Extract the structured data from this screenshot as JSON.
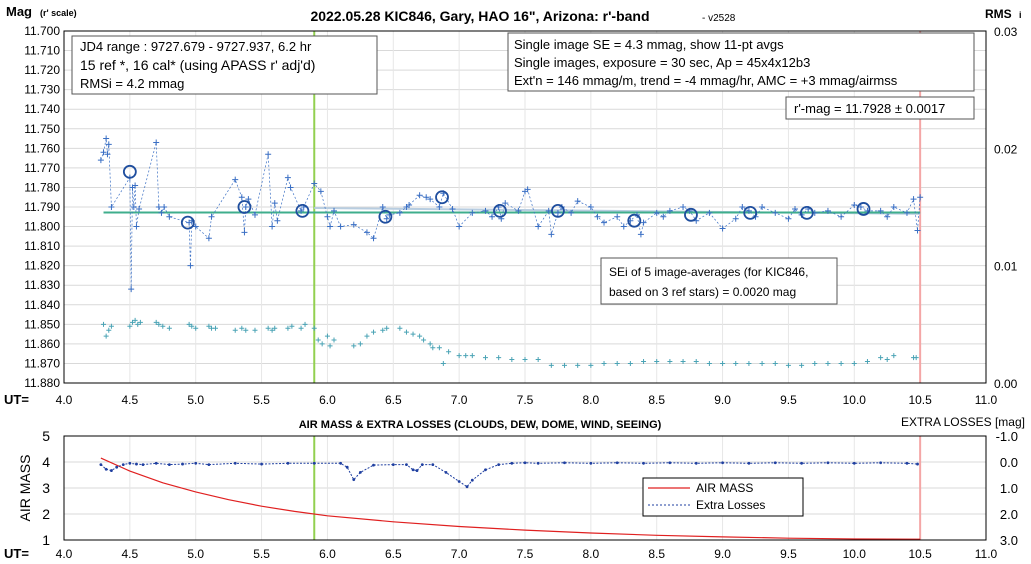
{
  "chart_data": [
    {
      "type": "scatter",
      "title": "2022.05.28 KIC846, Gary, HAO 16\", Arizona: r'-band",
      "version": "- v2528",
      "ylabel": "Mag",
      "ylabel_sub": "(r' scale)",
      "y2label": "RMS",
      "y2label_sub": "i",
      "xlabel": "UT=",
      "xlim": [
        4.0,
        11.0
      ],
      "ylim": [
        11.7,
        11.88
      ],
      "y_inverted": true,
      "y2lim": [
        0.0,
        0.03
      ],
      "x_ticks": [
        "4.0",
        "4.5",
        "5.0",
        "5.5",
        "6.0",
        "6.5",
        "7.0",
        "7.5",
        "8.0",
        "8.5",
        "9.0",
        "9.5",
        "10.0",
        "10.5",
        "11.0"
      ],
      "y_ticks": [
        "11.700",
        "11.710",
        "11.720",
        "11.730",
        "11.740",
        "11.750",
        "11.760",
        "11.770",
        "11.780",
        "11.790",
        "11.800",
        "11.810",
        "11.820",
        "11.830",
        "11.840",
        "11.850",
        "11.860",
        "11.870",
        "11.880"
      ],
      "y2_ticks": [
        "0.03",
        "0.02",
        "0.01",
        "0.00"
      ],
      "grid": true,
      "annotations": {
        "box1": [
          "JD4 range : 9727.679 - 9727.937,  6.2  hr",
          "15 ref *, 16 cal* (using APASS r' adj'd)",
          "RMSi = 4.2 mmag"
        ],
        "box2": [
          "Single image SE = 4.3 mmag, show  11-pt avgs",
          "Single images, exposure = 30 sec, Ap = 45x4x12b3",
          "Ext'n = 146 mmag/m, trend = -4  mmag/hr, AMC = +3 mmag/airmss"
        ],
        "box3": "r'-mag = 11.7928 ± 0.0017",
        "box4": [
          "SEi of 5 image-averages (for KIC846,",
          "based on 3 ref stars) = 0.0020 mag"
        ]
      },
      "vlines": [
        {
          "x": 5.9,
          "color": "#92d050"
        },
        {
          "x": 10.5,
          "color": "#f4a6a6"
        }
      ],
      "hline": {
        "y": 11.7928,
        "color": "#3fae8c"
      },
      "trend_line": {
        "x": [
          5.9,
          10.5
        ],
        "y": [
          11.7905,
          11.7935
        ]
      },
      "series": [
        {
          "role": "single-images",
          "color": "#3a6fc4",
          "x": [
            4.28,
            4.3,
            4.32,
            4.33,
            4.34,
            4.36,
            4.5,
            4.51,
            4.52,
            4.53,
            4.54,
            4.55,
            4.57,
            4.7,
            4.72,
            4.74,
            4.76,
            4.8,
            4.95,
            4.96,
            4.97,
            5.0,
            5.1,
            5.12,
            5.3,
            5.35,
            5.37,
            5.38,
            5.4,
            5.45,
            5.55,
            5.58,
            5.6,
            5.62,
            5.7,
            5.72,
            5.8,
            5.82,
            5.9,
            5.95,
            6.0,
            6.02,
            6.05,
            6.1,
            6.2,
            6.3,
            6.35,
            6.42,
            6.45,
            6.47,
            6.55,
            6.6,
            6.62,
            6.7,
            6.75,
            6.78,
            6.85,
            6.88,
            6.95,
            7.0,
            7.1,
            7.2,
            7.25,
            7.3,
            7.32,
            7.35,
            7.45,
            7.5,
            7.52,
            7.6,
            7.68,
            7.7,
            7.75,
            7.78,
            7.85,
            7.9,
            8.0,
            8.05,
            8.1,
            8.2,
            8.25,
            8.3,
            8.35,
            8.38,
            8.4,
            8.5,
            8.55,
            8.6,
            8.7,
            8.75,
            8.8,
            8.9,
            9.0,
            9.1,
            9.15,
            9.2,
            9.25,
            9.3,
            9.4,
            9.5,
            9.55,
            9.6,
            9.65,
            9.7,
            9.8,
            9.9,
            10.0,
            10.05,
            10.1,
            10.2,
            10.25,
            10.3,
            10.4,
            10.45,
            10.48,
            10.5
          ],
          "y": [
            11.766,
            11.762,
            11.755,
            11.763,
            11.758,
            11.79,
            11.775,
            11.832,
            11.78,
            11.79,
            11.779,
            11.8,
            11.791,
            11.757,
            11.79,
            11.793,
            11.79,
            11.795,
            11.798,
            11.82,
            11.797,
            11.8,
            11.806,
            11.795,
            11.776,
            11.785,
            11.803,
            11.79,
            11.786,
            11.794,
            11.763,
            11.8,
            11.788,
            11.797,
            11.775,
            11.78,
            11.792,
            11.79,
            11.778,
            11.782,
            11.795,
            11.8,
            11.792,
            11.8,
            11.799,
            11.803,
            11.806,
            11.79,
            11.796,
            11.794,
            11.793,
            11.79,
            11.789,
            11.784,
            11.785,
            11.786,
            11.79,
            11.783,
            11.791,
            11.8,
            11.793,
            11.792,
            11.795,
            11.79,
            11.796,
            11.788,
            11.792,
            11.782,
            11.781,
            11.8,
            11.792,
            11.804,
            11.793,
            11.79,
            11.793,
            11.787,
            11.79,
            11.795,
            11.798,
            11.795,
            11.8,
            11.797,
            11.794,
            11.804,
            11.798,
            11.793,
            11.795,
            11.792,
            11.79,
            11.792,
            11.797,
            11.793,
            11.801,
            11.796,
            11.79,
            11.792,
            11.795,
            11.79,
            11.793,
            11.796,
            11.791,
            11.794,
            11.791,
            11.793,
            11.792,
            11.795,
            11.789,
            11.79,
            11.792,
            11.792,
            11.795,
            11.79,
            11.793,
            11.786,
            11.802,
            11.785
          ]
        },
        {
          "role": "11-pt-averages",
          "color": "#1f4e9e",
          "x": [
            4.5,
            4.94,
            5.37,
            5.81,
            6.44,
            6.87,
            7.31,
            7.75,
            8.33,
            8.76,
            9.21,
            9.64,
            10.07
          ],
          "y": [
            11.772,
            11.798,
            11.79,
            11.792,
            11.795,
            11.785,
            11.792,
            11.792,
            11.797,
            11.794,
            11.793,
            11.793,
            11.791
          ]
        },
        {
          "role": "rms",
          "color": "#4aa3b5",
          "x": [
            4.3,
            4.32,
            4.34,
            4.36,
            4.5,
            4.52,
            4.54,
            4.56,
            4.58,
            4.7,
            4.72,
            4.75,
            4.8,
            4.95,
            4.97,
            5.0,
            5.1,
            5.12,
            5.15,
            5.3,
            5.35,
            5.38,
            5.45,
            5.55,
            5.58,
            5.6,
            5.7,
            5.73,
            5.8,
            5.83,
            5.9,
            5.93,
            5.96,
            6.0,
            6.02,
            6.05,
            6.2,
            6.25,
            6.3,
            6.35,
            6.42,
            6.45,
            6.55,
            6.6,
            6.65,
            6.7,
            6.73,
            6.78,
            6.8,
            6.85,
            6.88,
            6.92,
            7.0,
            7.05,
            7.1,
            7.2,
            7.3,
            7.4,
            7.5,
            7.6,
            7.7,
            7.8,
            7.9,
            8.0,
            8.1,
            8.2,
            8.3,
            8.4,
            8.5,
            8.6,
            8.7,
            8.8,
            8.9,
            9.0,
            9.1,
            9.2,
            9.3,
            9.4,
            9.5,
            9.6,
            9.7,
            9.8,
            9.9,
            10.0,
            10.1,
            10.2,
            10.25,
            10.3,
            10.45,
            10.47
          ],
          "y": [
            11.85,
            11.856,
            11.853,
            11.851,
            11.851,
            11.849,
            11.848,
            11.85,
            11.849,
            11.849,
            11.85,
            11.851,
            11.852,
            11.85,
            11.851,
            11.852,
            11.851,
            11.852,
            11.852,
            11.853,
            11.852,
            11.853,
            11.853,
            11.852,
            11.853,
            11.852,
            11.852,
            11.851,
            11.852,
            11.85,
            11.852,
            11.858,
            11.86,
            11.856,
            11.861,
            11.858,
            11.861,
            11.86,
            11.856,
            11.854,
            11.853,
            11.852,
            11.852,
            11.854,
            11.855,
            11.856,
            11.858,
            11.86,
            11.862,
            11.862,
            11.87,
            11.864,
            11.866,
            11.866,
            11.866,
            11.867,
            11.867,
            11.868,
            11.868,
            11.868,
            11.871,
            11.871,
            11.871,
            11.871,
            11.87,
            11.87,
            11.87,
            11.869,
            11.869,
            11.869,
            11.869,
            11.869,
            11.87,
            11.87,
            11.87,
            11.87,
            11.87,
            11.87,
            11.871,
            11.871,
            11.87,
            11.87,
            11.87,
            11.87,
            11.869,
            11.867,
            11.868,
            11.866,
            11.867,
            11.867
          ]
        }
      ]
    },
    {
      "type": "line",
      "title": "AIR MASS & EXTRA LOSSES (CLOUDS, DEW, DOME, WIND, SEEING)",
      "ylabel": "AIR MASS",
      "y2label": "EXTRA LOSSES [mag]",
      "xlabel": "UT=",
      "xlim": [
        4.0,
        11.0
      ],
      "ylim": [
        1,
        5
      ],
      "y2lim": [
        -1.0,
        3.0
      ],
      "y2_inverted": true,
      "x_ticks": [
        "4.0",
        "4.5",
        "5.0",
        "5.5",
        "6.0",
        "6.5",
        "7.0",
        "7.5",
        "8.0",
        "8.5",
        "9.0",
        "9.5",
        "10.0",
        "10.5",
        "11.0"
      ],
      "y_ticks": [
        "5",
        "4",
        "3",
        "2",
        "1"
      ],
      "y2_ticks": [
        "-1.0",
        "0.0",
        "1.0",
        "2.0",
        "3.0"
      ],
      "grid": true,
      "legend": {
        "position": "inside-right",
        "entries": [
          "AIR MASS",
          "Extra Losses"
        ]
      },
      "vlines": [
        {
          "x": 5.9,
          "color": "#92d050"
        },
        {
          "x": 10.5,
          "color": "#f4a6a6"
        }
      ],
      "series": [
        {
          "name": "AIR MASS",
          "color": "#e02020",
          "axis": "left",
          "x": [
            4.28,
            4.5,
            4.75,
            5.0,
            5.25,
            5.5,
            5.75,
            6.0,
            6.5,
            7.0,
            7.5,
            8.0,
            8.5,
            9.0,
            9.5,
            10.0,
            10.5
          ],
          "y": [
            4.15,
            3.65,
            3.2,
            2.85,
            2.55,
            2.3,
            2.1,
            1.93,
            1.7,
            1.52,
            1.38,
            1.27,
            1.18,
            1.12,
            1.07,
            1.04,
            1.03
          ]
        },
        {
          "name": "Extra Losses",
          "color": "#1f3fa0",
          "axis": "right",
          "x": [
            4.28,
            4.32,
            4.36,
            4.4,
            4.45,
            4.5,
            4.55,
            4.6,
            4.7,
            4.8,
            4.9,
            5.0,
            5.1,
            5.3,
            5.5,
            5.7,
            5.9,
            6.1,
            6.15,
            6.2,
            6.25,
            6.35,
            6.5,
            6.6,
            6.65,
            6.68,
            6.72,
            6.8,
            6.9,
            7.0,
            7.06,
            7.1,
            7.2,
            7.3,
            7.4,
            7.5,
            7.6,
            7.8,
            8.0,
            8.2,
            8.4,
            8.6,
            8.8,
            9.0,
            9.2,
            9.4,
            9.6,
            9.8,
            10.0,
            10.2,
            10.4,
            10.48
          ],
          "y": [
            0.1,
            0.28,
            0.33,
            0.2,
            0.1,
            0.05,
            0.08,
            0.1,
            0.05,
            0.1,
            0.08,
            0.05,
            0.1,
            0.05,
            0.08,
            0.05,
            0.05,
            0.05,
            0.2,
            0.68,
            0.4,
            0.12,
            0.1,
            0.1,
            0.3,
            0.33,
            0.1,
            0.1,
            0.4,
            0.75,
            0.95,
            0.7,
            0.3,
            0.1,
            0.05,
            0.03,
            0.05,
            0.03,
            0.05,
            0.03,
            0.05,
            0.03,
            0.05,
            0.03,
            0.05,
            0.03,
            0.05,
            0.03,
            0.05,
            0.03,
            0.05,
            0.08
          ]
        }
      ]
    }
  ]
}
